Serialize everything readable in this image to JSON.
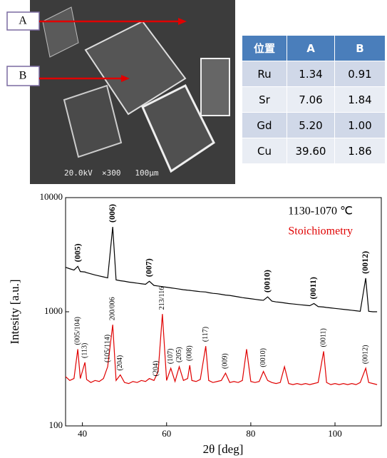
{
  "image": {
    "labels": [
      "A",
      "B"
    ],
    "caption": "20.0kV  ×300   100μm"
  },
  "table": {
    "header": [
      "位置",
      "A",
      "B"
    ],
    "rows": [
      [
        "Ru",
        "1.34",
        "0.91"
      ],
      [
        "Sr",
        "7.06",
        "1.84"
      ],
      [
        "Gd",
        "5.20",
        "1.00"
      ],
      [
        "Cu",
        "39.60",
        "1.86"
      ]
    ]
  },
  "chart_data": {
    "type": "line",
    "xlabel": "2θ [deg]",
    "ylabel": "Intesity [a.u.]",
    "yscale": "log",
    "legend": "upper right",
    "xlim": [
      36,
      111
    ],
    "xticks": [
      40,
      60,
      80,
      100
    ],
    "ylim": [
      100,
      10000
    ],
    "yticks": [
      100,
      1000,
      10000
    ],
    "x": [
      36,
      37,
      38,
      38.9,
      39.5,
      40.6,
      41,
      42,
      43,
      44,
      45,
      46,
      47.2,
      48,
      49,
      50,
      51,
      52,
      53,
      54,
      55,
      55.9,
      57,
      58,
      59,
      60,
      61,
      62,
      63,
      64,
      65,
      65.5,
      66,
      67,
      68,
      69.3,
      70,
      71,
      72,
      73,
      74,
      75,
      76,
      77,
      78,
      79,
      80,
      81,
      82,
      83,
      84,
      85,
      86,
      87,
      88,
      89,
      90,
      91,
      92,
      93,
      94,
      95,
      96,
      97.3,
      98,
      99,
      100,
      101,
      102,
      103,
      104,
      105,
      106,
      107.3,
      108,
      109,
      110
    ],
    "series": [
      {
        "name": "1130-1070 ℃",
        "color": "#000000",
        "values": [
          2450,
          2380,
          2320,
          2500,
          2250,
          2230,
          2200,
          2150,
          2100,
          2060,
          2020,
          1980,
          5540,
          1900,
          1870,
          1850,
          1820,
          1800,
          1780,
          1760,
          1740,
          1850,
          1700,
          1680,
          1660,
          1640,
          1620,
          1600,
          1580,
          1560,
          1545,
          1540,
          1530,
          1515,
          1500,
          1490,
          1470,
          1450,
          1440,
          1420,
          1400,
          1390,
          1370,
          1350,
          1330,
          1315,
          1300,
          1285,
          1270,
          1260,
          1350,
          1240,
          1220,
          1210,
          1195,
          1180,
          1170,
          1160,
          1150,
          1140,
          1130,
          1180,
          1110,
          1100,
          1090,
          1080,
          1070,
          1060,
          1050,
          1040,
          1030,
          1020,
          1010,
          1970,
          1010,
          1000,
          1000
        ],
        "annotations": [
          {
            "text": "(005)",
            "x": 39
          },
          {
            "text": "(006)",
            "x": 47.2
          },
          {
            "text": "(007)",
            "x": 55.9
          },
          {
            "text": "(0010)",
            "x": 84
          },
          {
            "text": "(0011)",
            "x": 95
          },
          {
            "text": "(0012)",
            "x": 107.3
          }
        ]
      },
      {
        "name": "Stoichiometry",
        "color": "#e00000",
        "values": [
          270,
          250,
          260,
          470,
          260,
          360,
          255,
          240,
          250,
          245,
          260,
          330,
          770,
          250,
          280,
          240,
          235,
          245,
          240,
          250,
          245,
          260,
          250,
          300,
          955,
          250,
          320,
          245,
          330,
          250,
          260,
          340,
          250,
          245,
          255,
          500,
          250,
          240,
          245,
          250,
          290,
          240,
          245,
          240,
          250,
          470,
          245,
          240,
          245,
          300,
          250,
          240,
          235,
          240,
          330,
          235,
          230,
          235,
          230,
          235,
          230,
          235,
          240,
          450,
          240,
          230,
          235,
          230,
          235,
          230,
          235,
          230,
          240,
          320,
          240,
          235,
          230
        ],
        "annotations": [
          {
            "text": "(005/104)",
            "x": 38.9
          },
          {
            "text": "(113)",
            "x": 40.6
          },
          {
            "text": "(105/114)",
            "x": 46
          },
          {
            "text": "200/006",
            "x": 47.2
          },
          {
            "text": "(204)",
            "x": 49
          },
          {
            "text": "(204)",
            "x": 57.5
          },
          {
            "text": "213/116",
            "x": 59
          },
          {
            "text": "(107)",
            "x": 61
          },
          {
            "text": "(205)",
            "x": 63
          },
          {
            "text": "(008)",
            "x": 65.5
          },
          {
            "text": "(117)",
            "x": 69.3
          },
          {
            "text": "(009)",
            "x": 74
          },
          {
            "text": "(0010)",
            "x": 83
          },
          {
            "text": "(0011)",
            "x": 97.3
          },
          {
            "text": "(0012)",
            "x": 107.3
          }
        ]
      }
    ]
  }
}
